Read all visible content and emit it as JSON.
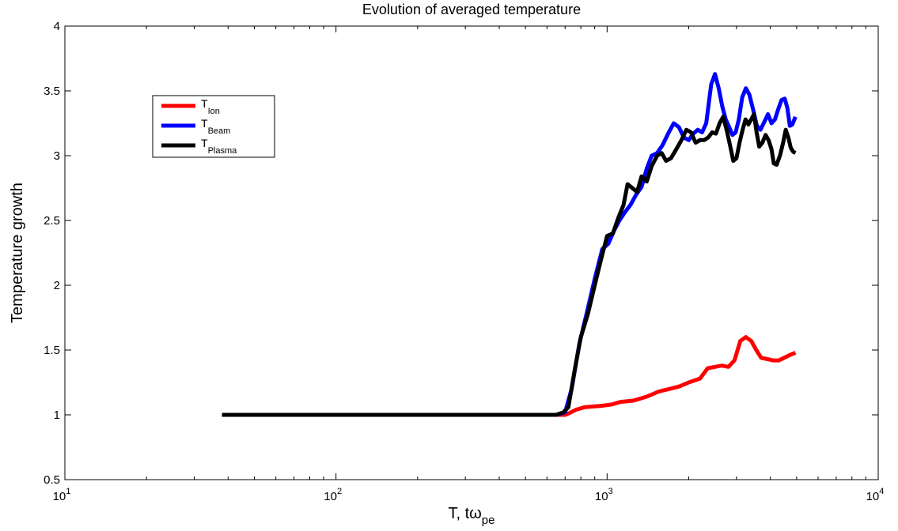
{
  "chart_data": {
    "type": "line",
    "title": "Evolution of averaged temperature",
    "xlabel": {
      "main": "T, t",
      "omega": "ω",
      "sub": "pe"
    },
    "ylabel": "Temperature growth",
    "xscale": "log",
    "xlim": [
      10,
      10000
    ],
    "ylim": [
      0.5,
      4
    ],
    "grid": false,
    "legend_position": "upper-left",
    "x_ticks": [
      {
        "base": "10",
        "exp": "1",
        "value": 10
      },
      {
        "base": "10",
        "exp": "2",
        "value": 100
      },
      {
        "base": "10",
        "exp": "3",
        "value": 1000
      },
      {
        "base": "10",
        "exp": "4",
        "value": 10000
      }
    ],
    "y_ticks": [
      {
        "label": "0.5",
        "value": 0.5
      },
      {
        "label": "1",
        "value": 1
      },
      {
        "label": "1.5",
        "value": 1.5
      },
      {
        "label": "2",
        "value": 2
      },
      {
        "label": "2.5",
        "value": 2.5
      },
      {
        "label": "3",
        "value": 3
      },
      {
        "label": "3.5",
        "value": 3.5
      },
      {
        "label": "4",
        "value": 4
      }
    ],
    "series": [
      {
        "name": "T",
        "name_sub": "Ion",
        "color": "#ff0000",
        "points": [
          [
            38,
            1.0
          ],
          [
            300,
            1.0
          ],
          [
            650,
            1.0
          ],
          [
            700,
            1.0
          ],
          [
            720,
            1.01
          ],
          [
            770,
            1.04
          ],
          [
            830,
            1.06
          ],
          [
            900,
            1.065
          ],
          [
            960,
            1.07
          ],
          [
            1040,
            1.08
          ],
          [
            1120,
            1.1
          ],
          [
            1250,
            1.11
          ],
          [
            1400,
            1.14
          ],
          [
            1550,
            1.18
          ],
          [
            1700,
            1.2
          ],
          [
            1850,
            1.22
          ],
          [
            2000,
            1.25
          ],
          [
            2200,
            1.28
          ],
          [
            2350,
            1.36
          ],
          [
            2500,
            1.37
          ],
          [
            2650,
            1.38
          ],
          [
            2800,
            1.37
          ],
          [
            2950,
            1.42
          ],
          [
            3100,
            1.57
          ],
          [
            3250,
            1.6
          ],
          [
            3400,
            1.57
          ],
          [
            3550,
            1.5
          ],
          [
            3700,
            1.44
          ],
          [
            3900,
            1.43
          ],
          [
            4100,
            1.42
          ],
          [
            4300,
            1.42
          ],
          [
            4500,
            1.44
          ],
          [
            4700,
            1.46
          ],
          [
            4950,
            1.48
          ]
        ]
      },
      {
        "name": "T",
        "name_sub": "Beam",
        "color": "#0000ff",
        "points": [
          [
            38,
            1.0
          ],
          [
            300,
            1.0
          ],
          [
            650,
            1.0
          ],
          [
            700,
            1.02
          ],
          [
            740,
            1.2
          ],
          [
            790,
            1.55
          ],
          [
            840,
            1.78
          ],
          [
            900,
            2.05
          ],
          [
            960,
            2.28
          ],
          [
            1010,
            2.32
          ],
          [
            1060,
            2.42
          ],
          [
            1110,
            2.5
          ],
          [
            1160,
            2.56
          ],
          [
            1220,
            2.62
          ],
          [
            1280,
            2.7
          ],
          [
            1340,
            2.76
          ],
          [
            1400,
            2.9
          ],
          [
            1460,
            3.0
          ],
          [
            1530,
            3.02
          ],
          [
            1600,
            3.08
          ],
          [
            1680,
            3.17
          ],
          [
            1760,
            3.25
          ],
          [
            1840,
            3.22
          ],
          [
            1920,
            3.14
          ],
          [
            2000,
            3.12
          ],
          [
            2080,
            3.17
          ],
          [
            2160,
            3.2
          ],
          [
            2240,
            3.18
          ],
          [
            2320,
            3.25
          ],
          [
            2420,
            3.55
          ],
          [
            2500,
            3.63
          ],
          [
            2580,
            3.52
          ],
          [
            2660,
            3.38
          ],
          [
            2740,
            3.28
          ],
          [
            2820,
            3.22
          ],
          [
            2900,
            3.16
          ],
          [
            2980,
            3.18
          ],
          [
            3060,
            3.28
          ],
          [
            3150,
            3.45
          ],
          [
            3250,
            3.52
          ],
          [
            3350,
            3.47
          ],
          [
            3460,
            3.35
          ],
          [
            3570,
            3.23
          ],
          [
            3680,
            3.2
          ],
          [
            3800,
            3.26
          ],
          [
            3920,
            3.32
          ],
          [
            4040,
            3.25
          ],
          [
            4160,
            3.28
          ],
          [
            4280,
            3.36
          ],
          [
            4400,
            3.43
          ],
          [
            4520,
            3.44
          ],
          [
            4620,
            3.37
          ],
          [
            4720,
            3.23
          ],
          [
            4820,
            3.24
          ],
          [
            4950,
            3.3
          ]
        ]
      },
      {
        "name": "T",
        "name_sub": "Plasma",
        "color": "#000000",
        "points": [
          [
            38,
            1.0
          ],
          [
            300,
            1.0
          ],
          [
            650,
            1.0
          ],
          [
            690,
            1.02
          ],
          [
            720,
            1.06
          ],
          [
            760,
            1.35
          ],
          [
            800,
            1.6
          ],
          [
            850,
            1.78
          ],
          [
            900,
            2.0
          ],
          [
            950,
            2.2
          ],
          [
            1000,
            2.38
          ],
          [
            1050,
            2.4
          ],
          [
            1100,
            2.52
          ],
          [
            1150,
            2.62
          ],
          [
            1190,
            2.78
          ],
          [
            1240,
            2.75
          ],
          [
            1290,
            2.72
          ],
          [
            1340,
            2.84
          ],
          [
            1400,
            2.8
          ],
          [
            1460,
            2.92
          ],
          [
            1530,
            3.0
          ],
          [
            1590,
            3.02
          ],
          [
            1650,
            2.96
          ],
          [
            1720,
            2.98
          ],
          [
            1800,
            3.05
          ],
          [
            1880,
            3.12
          ],
          [
            1960,
            3.2
          ],
          [
            2040,
            3.18
          ],
          [
            2120,
            3.1
          ],
          [
            2200,
            3.12
          ],
          [
            2280,
            3.12
          ],
          [
            2360,
            3.14
          ],
          [
            2440,
            3.18
          ],
          [
            2520,
            3.17
          ],
          [
            2600,
            3.25
          ],
          [
            2680,
            3.3
          ],
          [
            2760,
            3.2
          ],
          [
            2840,
            3.08
          ],
          [
            2920,
            2.96
          ],
          [
            3000,
            2.98
          ],
          [
            3080,
            3.1
          ],
          [
            3160,
            3.2
          ],
          [
            3240,
            3.28
          ],
          [
            3320,
            3.24
          ],
          [
            3400,
            3.28
          ],
          [
            3480,
            3.32
          ],
          [
            3560,
            3.18
          ],
          [
            3640,
            3.07
          ],
          [
            3740,
            3.1
          ],
          [
            3840,
            3.16
          ],
          [
            3940,
            3.12
          ],
          [
            4040,
            3.05
          ],
          [
            4120,
            2.94
          ],
          [
            4220,
            2.93
          ],
          [
            4340,
            3.0
          ],
          [
            4460,
            3.1
          ],
          [
            4560,
            3.2
          ],
          [
            4660,
            3.14
          ],
          [
            4760,
            3.06
          ],
          [
            4860,
            3.03
          ],
          [
            4950,
            3.02
          ]
        ]
      }
    ]
  }
}
